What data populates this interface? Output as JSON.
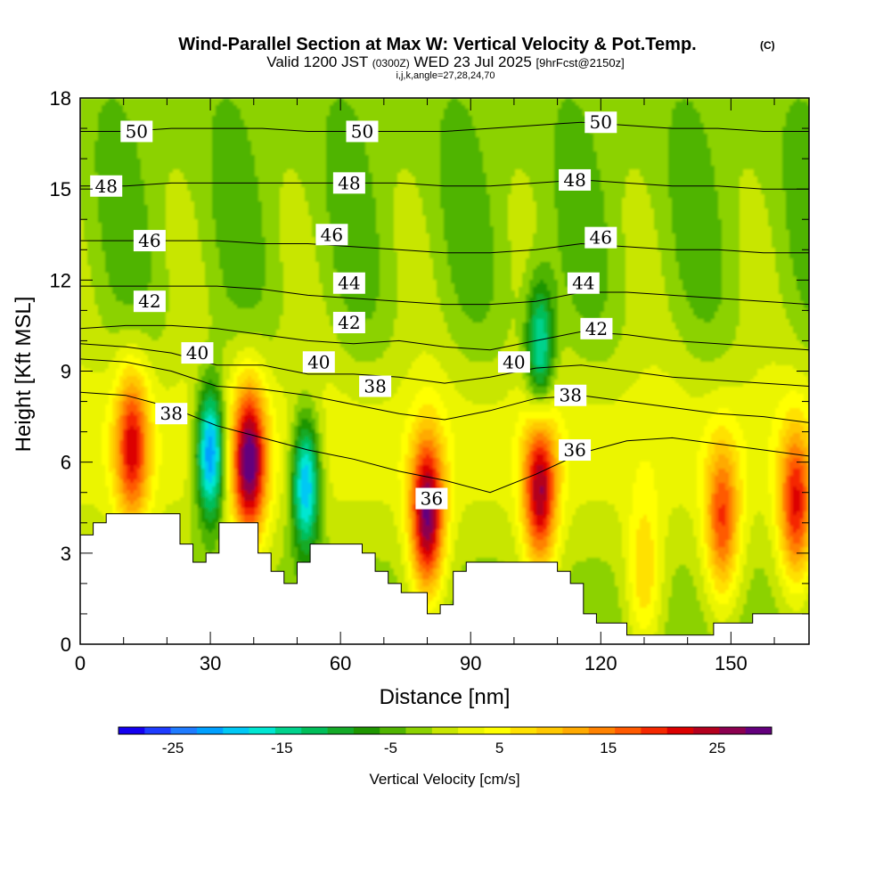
{
  "title": {
    "main": "Wind-Parallel Section at Max W: Vertical Velocity & Pot.Temp.",
    "copyright": "(C)",
    "valid_prefix": "Valid 1200 JST",
    "valid_utc": "(0300Z)",
    "valid_date": "WED 23 Jul 2025",
    "forecast": "[9hrFcst@2150z]",
    "indices": "i,j,k,angle=27,28,24,70"
  },
  "chart_data": {
    "type": "heatmap",
    "xlabel": "Distance [nm]",
    "ylabel": "Height [Kft MSL]",
    "xlim": [
      0,
      168
    ],
    "ylim": [
      0,
      18
    ],
    "xticks": [
      0,
      30,
      60,
      90,
      120,
      150
    ],
    "yticks": [
      0,
      3,
      6,
      9,
      12,
      15,
      18
    ],
    "colorbar": {
      "label": "Vertical Velocity [cm/s]",
      "tick_values": [
        -25,
        -15,
        -5,
        5,
        15,
        25
      ],
      "tick_labels": [
        "-25",
        "-15",
        "-5",
        "5",
        "15",
        "25"
      ],
      "min": -30,
      "max": 30,
      "colors": [
        "#1400f0",
        "#1e3cff",
        "#1f7bff",
        "#00a0ff",
        "#00c8f5",
        "#00e6d2",
        "#00d28c",
        "#00be5a",
        "#14aa28",
        "#1e9600",
        "#50b400",
        "#8cd200",
        "#c8e600",
        "#ebf500",
        "#ffff00",
        "#ffe100",
        "#ffc800",
        "#ffaa00",
        "#ff8200",
        "#ff5a00",
        "#f52800",
        "#dc0000",
        "#b4001e",
        "#8c0050",
        "#64007d"
      ]
    },
    "terrain": [
      [
        0,
        3.6
      ],
      [
        3,
        3.6
      ],
      [
        3,
        4.0
      ],
      [
        6,
        4.0
      ],
      [
        6,
        4.3
      ],
      [
        23,
        4.3
      ],
      [
        23,
        3.3
      ],
      [
        26,
        3.3
      ],
      [
        26,
        2.7
      ],
      [
        29,
        2.7
      ],
      [
        29,
        3.0
      ],
      [
        32,
        3.0
      ],
      [
        32,
        4.0
      ],
      [
        41,
        4.0
      ],
      [
        41,
        3.0
      ],
      [
        44,
        3.0
      ],
      [
        44,
        2.4
      ],
      [
        47,
        2.4
      ],
      [
        47,
        2.0
      ],
      [
        50,
        2.0
      ],
      [
        50,
        2.7
      ],
      [
        53,
        2.7
      ],
      [
        53,
        3.3
      ],
      [
        65,
        3.3
      ],
      [
        65,
        3.0
      ],
      [
        68,
        3.0
      ],
      [
        68,
        2.4
      ],
      [
        71,
        2.4
      ],
      [
        71,
        2.0
      ],
      [
        74,
        2.0
      ],
      [
        74,
        1.7
      ],
      [
        80,
        1.7
      ],
      [
        80,
        1.0
      ],
      [
        83,
        1.0
      ],
      [
        83,
        1.3
      ],
      [
        86,
        1.3
      ],
      [
        86,
        2.4
      ],
      [
        89,
        2.4
      ],
      [
        89,
        2.7
      ],
      [
        110,
        2.7
      ],
      [
        110,
        2.4
      ],
      [
        113,
        2.4
      ],
      [
        113,
        2.0
      ],
      [
        116,
        2.0
      ],
      [
        116,
        1.0
      ],
      [
        119,
        1.0
      ],
      [
        119,
        0.7
      ],
      [
        126,
        0.7
      ],
      [
        126,
        0.3
      ],
      [
        146,
        0.3
      ],
      [
        146,
        0.7
      ],
      [
        155,
        0.7
      ],
      [
        155,
        1.0
      ],
      [
        168,
        1.0
      ]
    ],
    "updrafts": [
      {
        "x": 12,
        "z": 6.5,
        "w": 20
      },
      {
        "x": 39,
        "z": 6.0,
        "w": 28
      },
      {
        "x": 80,
        "z": 4.2,
        "w": 28
      },
      {
        "x": 106,
        "z": 5.0,
        "w": 24
      },
      {
        "x": 130,
        "z": 2.2,
        "w": 10
      },
      {
        "x": 148,
        "z": 4.0,
        "w": 18
      },
      {
        "x": 165,
        "z": 4.5,
        "w": 20
      }
    ],
    "downdrafts": [
      {
        "x": 30,
        "z": 6.3,
        "w": -25
      },
      {
        "x": 52,
        "z": 5.3,
        "w": -22
      },
      {
        "x": 106,
        "z": 9.7,
        "w": -17
      }
    ],
    "isentropes": [
      {
        "theta": 36,
        "heights": [
          8.3,
          8.2,
          7.8,
          7.2,
          6.8,
          6.4,
          6.1,
          5.7,
          5.4,
          5.0,
          5.6,
          6.3,
          6.7,
          6.8,
          6.6,
          6.4,
          6.2
        ]
      },
      {
        "theta": 38,
        "heights": [
          9.4,
          9.3,
          9.0,
          8.5,
          8.4,
          8.2,
          7.9,
          7.6,
          7.4,
          7.7,
          8.1,
          8.2,
          8.0,
          7.8,
          7.6,
          7.5,
          7.3
        ]
      },
      {
        "theta": 40,
        "heights": [
          9.9,
          9.8,
          9.6,
          9.2,
          9.2,
          8.9,
          8.9,
          8.8,
          8.6,
          8.8,
          9.1,
          9.2,
          9.0,
          8.8,
          8.7,
          8.6,
          8.5
        ]
      },
      {
        "theta": 42,
        "heights": [
          10.4,
          10.5,
          10.5,
          10.4,
          10.2,
          10.0,
          9.9,
          10.0,
          9.8,
          9.7,
          10.0,
          10.3,
          10.2,
          10.0,
          9.9,
          9.8,
          9.7
        ]
      },
      {
        "theta": 44,
        "heights": [
          11.8,
          11.8,
          11.8,
          11.8,
          11.7,
          11.5,
          11.4,
          11.3,
          11.2,
          11.2,
          11.3,
          11.6,
          11.6,
          11.5,
          11.4,
          11.3,
          11.2
        ]
      },
      {
        "theta": 46,
        "heights": [
          13.3,
          13.3,
          13.3,
          13.3,
          13.2,
          13.2,
          13.1,
          13.0,
          12.9,
          12.9,
          13.0,
          13.2,
          13.1,
          13.0,
          13.0,
          12.9,
          12.9
        ]
      },
      {
        "theta": 48,
        "heights": [
          15.1,
          15.1,
          15.2,
          15.2,
          15.2,
          15.2,
          15.2,
          15.2,
          15.1,
          15.1,
          15.2,
          15.3,
          15.2,
          15.1,
          15.1,
          15.0,
          15.0
        ]
      },
      {
        "theta": 50,
        "heights": [
          16.9,
          16.9,
          17.0,
          17.0,
          17.0,
          16.9,
          16.9,
          16.9,
          16.9,
          17.0,
          17.1,
          17.2,
          17.1,
          17.0,
          17.0,
          16.9,
          16.9
        ]
      }
    ],
    "contour_labels": [
      {
        "text": "50",
        "x": 13,
        "z": 16.9
      },
      {
        "text": "50",
        "x": 65,
        "z": 16.9
      },
      {
        "text": "50",
        "x": 120,
        "z": 17.2
      },
      {
        "text": "48",
        "x": 6,
        "z": 15.1
      },
      {
        "text": "48",
        "x": 62,
        "z": 15.2
      },
      {
        "text": "48",
        "x": 114,
        "z": 15.3
      },
      {
        "text": "46",
        "x": 16,
        "z": 13.3
      },
      {
        "text": "46",
        "x": 58,
        "z": 13.5
      },
      {
        "text": "46",
        "x": 120,
        "z": 13.4
      },
      {
        "text": "44",
        "x": 62,
        "z": 11.9
      },
      {
        "text": "44",
        "x": 116,
        "z": 11.9
      },
      {
        "text": "42",
        "x": 16,
        "z": 11.3
      },
      {
        "text": "42",
        "x": 62,
        "z": 10.6
      },
      {
        "text": "42",
        "x": 119,
        "z": 10.4
      },
      {
        "text": "40",
        "x": 27,
        "z": 9.6
      },
      {
        "text": "40",
        "x": 55,
        "z": 9.3
      },
      {
        "text": "40",
        "x": 100,
        "z": 9.3
      },
      {
        "text": "38",
        "x": 21,
        "z": 7.6
      },
      {
        "text": "38",
        "x": 68,
        "z": 8.5
      },
      {
        "text": "38",
        "x": 113,
        "z": 8.2
      },
      {
        "text": "36",
        "x": 81,
        "z": 4.8
      },
      {
        "text": "36",
        "x": 114,
        "z": 6.4
      }
    ]
  }
}
